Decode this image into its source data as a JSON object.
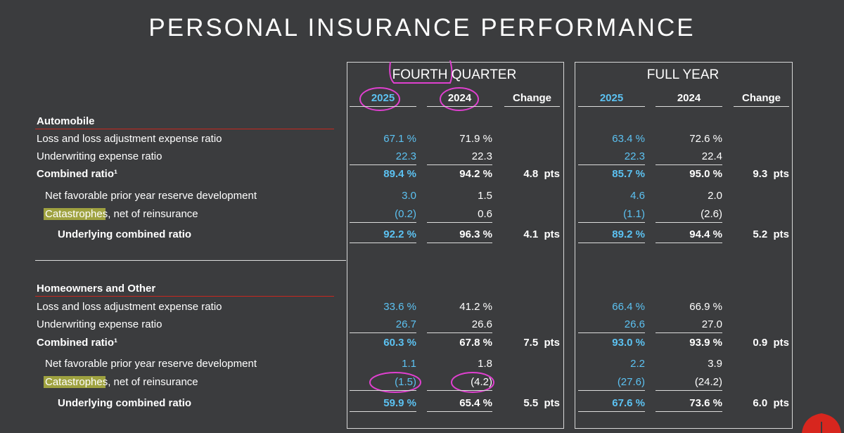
{
  "title": "PERSONAL INSURANCE PERFORMANCE",
  "groups": [
    {
      "title": "FOURTH QUARTER",
      "columns": [
        "2025",
        "2024",
        "Change"
      ]
    },
    {
      "title": "FULL YEAR",
      "columns": [
        "2025",
        "2024",
        "Change"
      ]
    }
  ],
  "sections": [
    {
      "name": "Automobile",
      "rows": [
        {
          "label": "Loss and loss adjustment expense ratio",
          "level": 0,
          "q4": [
            "67.1 %",
            "71.9 %"
          ],
          "fy": [
            "63.4 %",
            "72.6 %"
          ]
        },
        {
          "label": "Underwriting expense ratio",
          "level": 0,
          "underline": true,
          "q4": [
            "22.3",
            "22.3"
          ],
          "fy": [
            "22.3",
            "22.4"
          ]
        },
        {
          "label": "Combined ratio¹",
          "level": 0,
          "bold": true,
          "q4": [
            "89.4 %",
            "94.2 %",
            "4.8  pts"
          ],
          "fy": [
            "85.7 %",
            "95.0 %",
            "9.3  pts"
          ]
        },
        {
          "label": "Net favorable prior year reserve development",
          "level": 1,
          "q4": [
            "3.0",
            "1.5"
          ],
          "fy": [
            "4.6",
            "2.0"
          ]
        },
        {
          "label": "Catastrophes, net of reinsurance",
          "level": 1,
          "highlight": true,
          "underline": true,
          "q4": [
            "(0.2)",
            "0.6"
          ],
          "fy": [
            "(1.1)",
            "(2.6)"
          ]
        },
        {
          "label": "Underlying combined ratio",
          "level": 2,
          "bold": true,
          "underline": true,
          "q4": [
            "92.2 %",
            "96.3 %",
            "4.1  pts"
          ],
          "fy": [
            "89.2 %",
            "94.4 %",
            "5.2  pts"
          ]
        }
      ]
    },
    {
      "name": "Homeowners and Other",
      "rows": [
        {
          "label": "Loss and loss adjustment expense ratio",
          "level": 0,
          "q4": [
            "33.6 %",
            "41.2 %"
          ],
          "fy": [
            "66.4 %",
            "66.9 %"
          ]
        },
        {
          "label": "Underwriting expense ratio",
          "level": 0,
          "underline": true,
          "q4": [
            "26.7",
            "26.6"
          ],
          "fy": [
            "26.6",
            "27.0"
          ]
        },
        {
          "label": "Combined ratio¹",
          "level": 0,
          "bold": true,
          "q4": [
            "60.3 %",
            "67.8 %",
            "7.5  pts"
          ],
          "fy": [
            "93.0 %",
            "93.9 %",
            "0.9  pts"
          ]
        },
        {
          "label": "Net favorable prior year reserve development",
          "level": 1,
          "q4": [
            "1.1",
            "1.8"
          ],
          "fy": [
            "2.2",
            "3.9"
          ]
        },
        {
          "label": "Catastrophes, net of reinsurance",
          "level": 1,
          "highlight": true,
          "underline": true,
          "q4": [
            "(1.5)",
            "(4.2)"
          ],
          "fy": [
            "(27.6)",
            "(24.2)"
          ]
        },
        {
          "label": "Underlying combined ratio",
          "level": 2,
          "bold": true,
          "underline": true,
          "q4": [
            "59.9 %",
            "65.4 %",
            "5.5  pts"
          ],
          "fy": [
            "67.6 %",
            "73.6 %",
            "6.0  pts"
          ]
        }
      ]
    }
  ]
}
